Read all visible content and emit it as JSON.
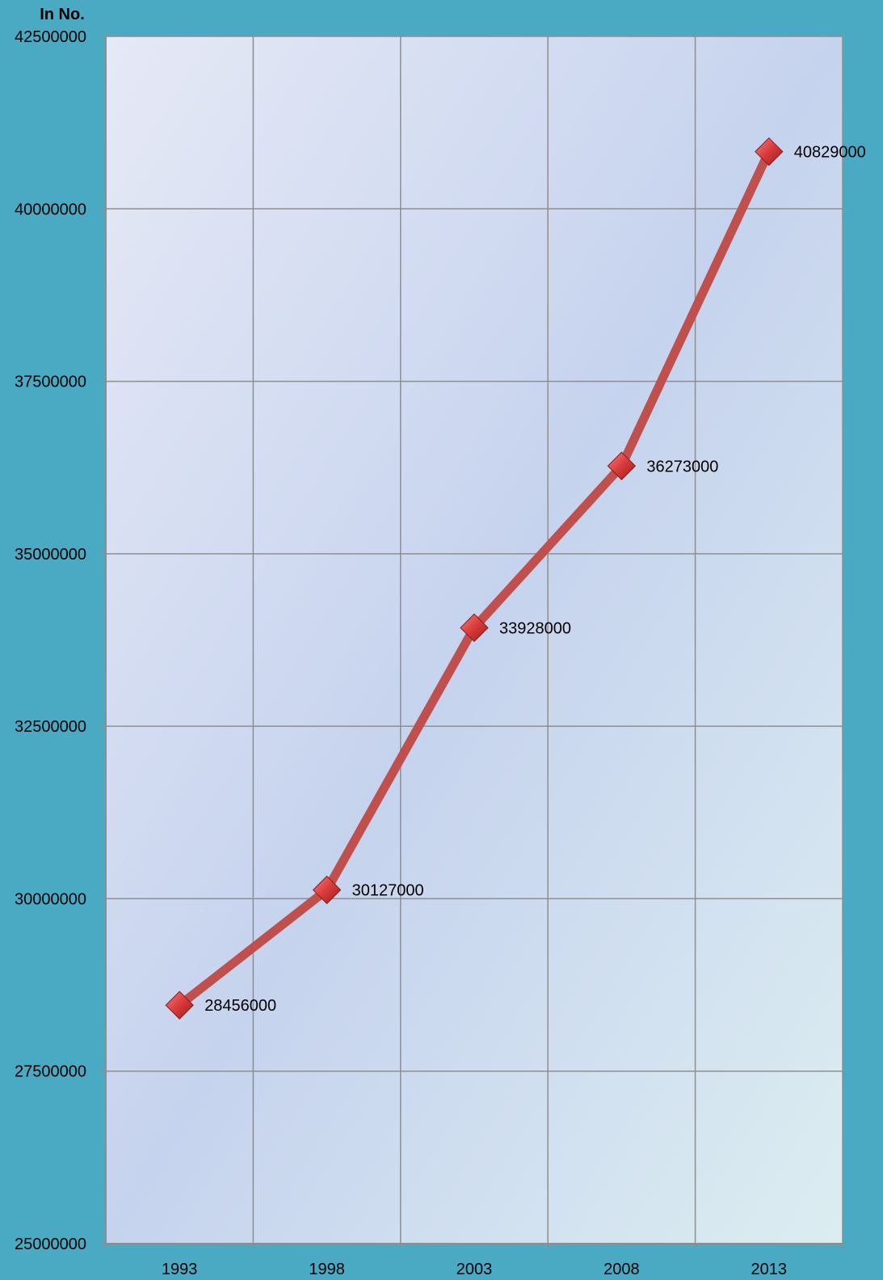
{
  "chart_data": {
    "type": "line",
    "title": "",
    "ylabel": "In No.",
    "xlabel": "",
    "categories": [
      "1993",
      "1998",
      "2003",
      "2008",
      "2013"
    ],
    "values": [
      28456000,
      30127000,
      33928000,
      36273000,
      40829000
    ],
    "data_labels": [
      "28456000",
      "30127000",
      "33928000",
      "36273000",
      "40829000"
    ],
    "ylim": [
      25000000,
      42500000
    ],
    "yticks": [
      25000000,
      27500000,
      30000000,
      32500000,
      35000000,
      37500000,
      40000000,
      42500000
    ],
    "ytick_labels": [
      "25000000",
      "27500000",
      "30000000",
      "32500000",
      "35000000",
      "37500000",
      "40000000",
      "42500000"
    ],
    "grid": true,
    "marker": "diamond",
    "colors": {
      "background": "#4aaac4",
      "line": "#c0504d",
      "marker": "#d93a3a",
      "grid": "#8e8e8e"
    }
  }
}
